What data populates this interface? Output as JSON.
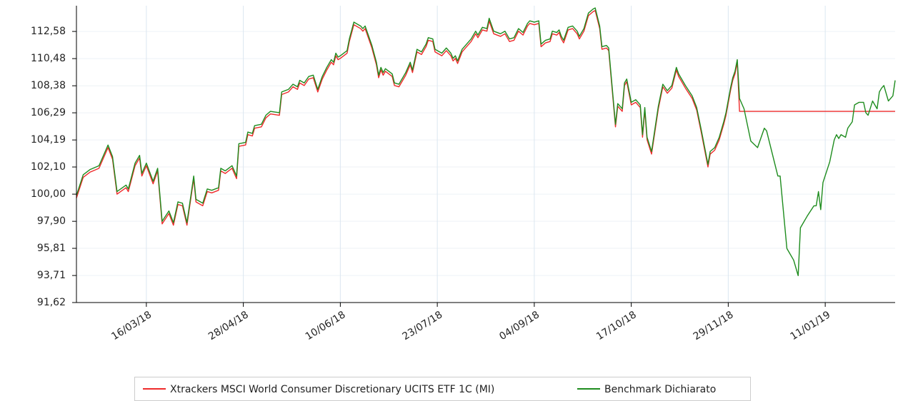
{
  "chart_data": {
    "type": "line",
    "x": [
      "13/02/18",
      "16/02/18",
      "19/02/18",
      "23/02/18",
      "25/02/18",
      "27/02/18",
      "01/03/18",
      "03/03/18",
      "07/03/18",
      "08/03/18",
      "11/03/18",
      "13/03/18",
      "14/03/18",
      "16/03/18",
      "19/03/18",
      "21/03/18",
      "23/03/18",
      "26/03/18",
      "28/03/18",
      "30/03/18",
      "01/04/18",
      "03/04/18",
      "06/04/18",
      "07/04/18",
      "10/04/18",
      "12/04/18",
      "14/04/18",
      "17/04/18",
      "18/04/18",
      "20/04/18",
      "23/04/18",
      "25/04/18",
      "26/04/18",
      "29/04/18",
      "30/04/18",
      "02/05/18",
      "03/05/18",
      "06/05/18",
      "08/05/18",
      "10/05/18",
      "14/05/18",
      "15/05/18",
      "18/05/18",
      "20/05/18",
      "22/05/18",
      "23/05/18",
      "25/05/18",
      "27/05/18",
      "29/05/18",
      "31/05/18",
      "02/06/18",
      "04/06/18",
      "06/06/18",
      "07/06/18",
      "08/06/18",
      "09/06/18",
      "10/06/18",
      "13/06/18",
      "14/06/18",
      "16/06/18",
      "19/06/18",
      "20/06/18",
      "21/06/18",
      "24/06/18",
      "26/06/18",
      "27/06/18",
      "28/06/18",
      "29/06/18",
      "30/06/18",
      "03/07/18",
      "04/07/18",
      "06/07/18",
      "09/07/18",
      "11/07/18",
      "12/07/18",
      "14/07/18",
      "16/07/18",
      "18/07/18",
      "19/07/18",
      "21/07/18",
      "22/07/18",
      "25/07/18",
      "27/07/18",
      "29/07/18",
      "30/07/18",
      "31/07/18",
      "01/08/18",
      "03/08/18",
      "05/08/18",
      "07/08/18",
      "09/08/18",
      "10/08/18",
      "12/08/18",
      "14/08/18",
      "15/08/18",
      "17/08/18",
      "20/08/18",
      "22/08/18",
      "24/08/18",
      "26/08/18",
      "28/08/18",
      "30/08/18",
      "01/09/18",
      "02/09/18",
      "04/09/18",
      "06/09/18",
      "07/09/18",
      "09/09/18",
      "11/09/18",
      "12/09/18",
      "14/09/18",
      "15/09/18",
      "16/09/18",
      "17/09/18",
      "19/09/18",
      "21/09/18",
      "23/09/18",
      "24/09/18",
      "26/09/18",
      "28/09/18",
      "30/09/18",
      "01/10/18",
      "03/10/18",
      "04/10/18",
      "06/10/18",
      "07/10/18",
      "10/10/18",
      "11/10/18",
      "13/10/18",
      "14/10/18",
      "15/10/18",
      "17/10/18",
      "19/10/18",
      "21/10/18",
      "22/10/18",
      "23/10/18",
      "24/10/18",
      "26/10/18",
      "29/10/18",
      "31/10/18",
      "02/11/18",
      "04/11/18",
      "06/11/18",
      "07/11/18",
      "10/11/18",
      "13/11/18",
      "15/11/18",
      "17/11/18",
      "20/11/18",
      "21/11/18",
      "23/11/18",
      "25/11/18",
      "27/11/18",
      "28/11/18",
      "30/11/18",
      "01/12/18",
      "02/12/18",
      "03/12/18",
      "04/12/18",
      "06/12/18",
      "09/12/18",
      "12/12/18",
      "15/12/18",
      "16/12/18",
      "18/12/18",
      "21/12/18",
      "22/12/18",
      "25/12/18",
      "28/12/18",
      "30/12/18",
      "31/12/18",
      "03/01/19",
      "06/01/19",
      "07/01/19",
      "08/01/19",
      "09/01/19",
      "10/01/19",
      "13/01/19",
      "15/01/19",
      "16/01/19",
      "17/01/19",
      "18/01/19",
      "20/01/19",
      "21/01/19",
      "23/01/19",
      "24/01/19",
      "26/01/19",
      "28/01/19",
      "29/01/19",
      "30/01/19",
      "01/02/19",
      "03/02/19",
      "04/02/19",
      "05/02/19",
      "06/02/19",
      "08/02/19",
      "10/02/19",
      "11/02/19"
    ],
    "series": [
      {
        "name": "Xtrackers MSCI World Consumer Discretionary UCITS ETF 1C (MI)",
        "color": "#ee2a2a",
        "values": [
          99.7,
          101.3,
          101.7,
          102.0,
          102.8,
          103.6,
          102.7,
          100.0,
          100.5,
          100.2,
          102.2,
          102.8,
          101.4,
          102.2,
          100.8,
          101.8,
          97.7,
          98.5,
          97.6,
          99.2,
          99.1,
          97.6,
          101.2,
          99.4,
          99.1,
          100.2,
          100.1,
          100.3,
          101.8,
          101.6,
          102.0,
          101.2,
          103.7,
          103.8,
          104.6,
          104.5,
          105.1,
          105.2,
          105.9,
          106.2,
          106.1,
          107.7,
          107.9,
          108.3,
          108.1,
          108.6,
          108.4,
          108.9,
          109.0,
          107.9,
          108.9,
          109.6,
          110.2,
          110.0,
          110.7,
          110.4,
          110.5,
          110.9,
          111.8,
          113.1,
          112.8,
          112.6,
          112.8,
          111.3,
          110.0,
          109.0,
          109.6,
          109.2,
          109.5,
          109.1,
          108.4,
          108.3,
          109.2,
          110.0,
          109.4,
          111.0,
          110.8,
          111.4,
          111.9,
          111.8,
          111.0,
          110.7,
          111.1,
          110.7,
          110.3,
          110.5,
          110.1,
          111.0,
          111.4,
          111.8,
          112.4,
          112.1,
          112.7,
          112.6,
          113.4,
          112.4,
          112.2,
          112.4,
          111.8,
          111.9,
          112.6,
          112.3,
          113.0,
          113.2,
          113.1,
          113.2,
          111.4,
          111.7,
          111.8,
          112.4,
          112.3,
          112.5,
          112.0,
          111.7,
          112.7,
          112.8,
          112.4,
          112.0,
          112.6,
          113.8,
          114.1,
          114.2,
          112.8,
          111.2,
          111.3,
          111.1,
          105.2,
          106.8,
          106.4,
          108.4,
          108.7,
          106.9,
          107.1,
          106.7,
          104.4,
          106.5,
          104.2,
          103.1,
          106.6,
          108.3,
          107.8,
          108.2,
          109.6,
          109.1,
          108.2,
          107.4,
          106.5,
          104.8,
          102.1,
          103.1,
          103.4,
          104.2,
          105.4,
          106.1,
          108.0,
          108.8,
          109.3,
          110.2,
          106.4,
          106.4,
          106.4,
          106.4,
          106.4,
          106.4,
          106.4,
          106.4,
          106.4,
          106.4,
          106.4,
          106.4,
          106.4,
          106.4,
          106.4,
          106.4,
          106.4,
          106.4,
          106.4,
          106.4,
          106.4,
          106.4,
          106.4,
          106.4,
          106.4,
          106.4,
          106.4,
          106.4,
          106.4,
          106.4,
          106.4,
          106.4,
          106.4,
          106.4,
          106.4,
          106.4,
          106.4,
          106.4,
          106.4,
          106.4
        ]
      },
      {
        "name": "Benchmark Dichiarato",
        "color": "#1e8c1e",
        "values": [
          99.9,
          101.5,
          101.9,
          102.2,
          103.0,
          103.8,
          102.9,
          100.2,
          100.7,
          100.4,
          102.4,
          103.0,
          101.6,
          102.4,
          101.0,
          102.0,
          97.9,
          98.7,
          97.8,
          99.4,
          99.3,
          97.8,
          101.4,
          99.6,
          99.3,
          100.4,
          100.3,
          100.5,
          102.0,
          101.8,
          102.2,
          101.4,
          103.9,
          104.0,
          104.8,
          104.7,
          105.3,
          105.4,
          106.1,
          106.4,
          106.3,
          107.9,
          108.1,
          108.5,
          108.3,
          108.8,
          108.6,
          109.1,
          109.2,
          108.1,
          109.1,
          109.8,
          110.4,
          110.2,
          110.9,
          110.6,
          110.7,
          111.1,
          112.0,
          113.3,
          113.0,
          112.8,
          113.0,
          111.5,
          110.2,
          109.2,
          109.8,
          109.4,
          109.7,
          109.3,
          108.6,
          108.5,
          109.4,
          110.2,
          109.6,
          111.2,
          111.0,
          111.6,
          112.1,
          112.0,
          111.2,
          110.9,
          111.3,
          110.9,
          110.5,
          110.7,
          110.3,
          111.2,
          111.6,
          112.0,
          112.6,
          112.3,
          112.9,
          112.8,
          113.6,
          112.6,
          112.4,
          112.6,
          112.0,
          112.1,
          112.8,
          112.5,
          113.2,
          113.4,
          113.3,
          113.4,
          111.6,
          111.9,
          112.0,
          112.6,
          112.5,
          112.7,
          112.2,
          111.9,
          112.9,
          113.0,
          112.6,
          112.2,
          112.8,
          114.0,
          114.3,
          114.4,
          113.0,
          111.4,
          111.5,
          111.3,
          105.4,
          107.0,
          106.6,
          108.6,
          108.9,
          107.1,
          107.3,
          106.9,
          104.6,
          106.7,
          104.4,
          103.3,
          106.8,
          108.5,
          108.0,
          108.4,
          109.8,
          109.3,
          108.4,
          107.6,
          106.7,
          105.0,
          102.3,
          103.3,
          103.6,
          104.4,
          105.6,
          106.3,
          108.2,
          109.0,
          109.5,
          110.4,
          107.4,
          106.6,
          104.1,
          103.6,
          105.1,
          104.9,
          103.5,
          101.4,
          101.4,
          95.8,
          94.9,
          93.7,
          97.4,
          98.3,
          99.1,
          99.1,
          100.2,
          98.8,
          100.9,
          102.5,
          104.2,
          104.6,
          104.3,
          104.6,
          104.4,
          105.1,
          105.6,
          106.9,
          107.1,
          107.1,
          106.3,
          106.1,
          107.2,
          106.6,
          107.9,
          108.2,
          108.4,
          107.2,
          107.6,
          108.8
        ]
      }
    ],
    "xlim": [
      "13/02/18",
      "11/02/19"
    ],
    "xticks": [
      "16/03/18",
      "28/04/18",
      "10/06/18",
      "23/07/18",
      "04/09/18",
      "17/10/18",
      "29/11/18",
      "11/01/19"
    ],
    "ylim": [
      91.62,
      114.57
    ],
    "yticks": [
      {
        "value": 91.62,
        "label": "91,62"
      },
      {
        "value": 93.71,
        "label": "93,71"
      },
      {
        "value": 95.81,
        "label": "95,81"
      },
      {
        "value": 97.9,
        "label": "97,90"
      },
      {
        "value": 100.0,
        "label": "100,00"
      },
      {
        "value": 102.1,
        "label": "102,10"
      },
      {
        "value": 104.19,
        "label": "104,19"
      },
      {
        "value": 106.29,
        "label": "106,29"
      },
      {
        "value": 108.38,
        "label": "108,38"
      },
      {
        "value": 110.48,
        "label": "110,48"
      },
      {
        "value": 112.58,
        "label": "112,58"
      }
    ],
    "grid": true,
    "legend": "bottom"
  }
}
